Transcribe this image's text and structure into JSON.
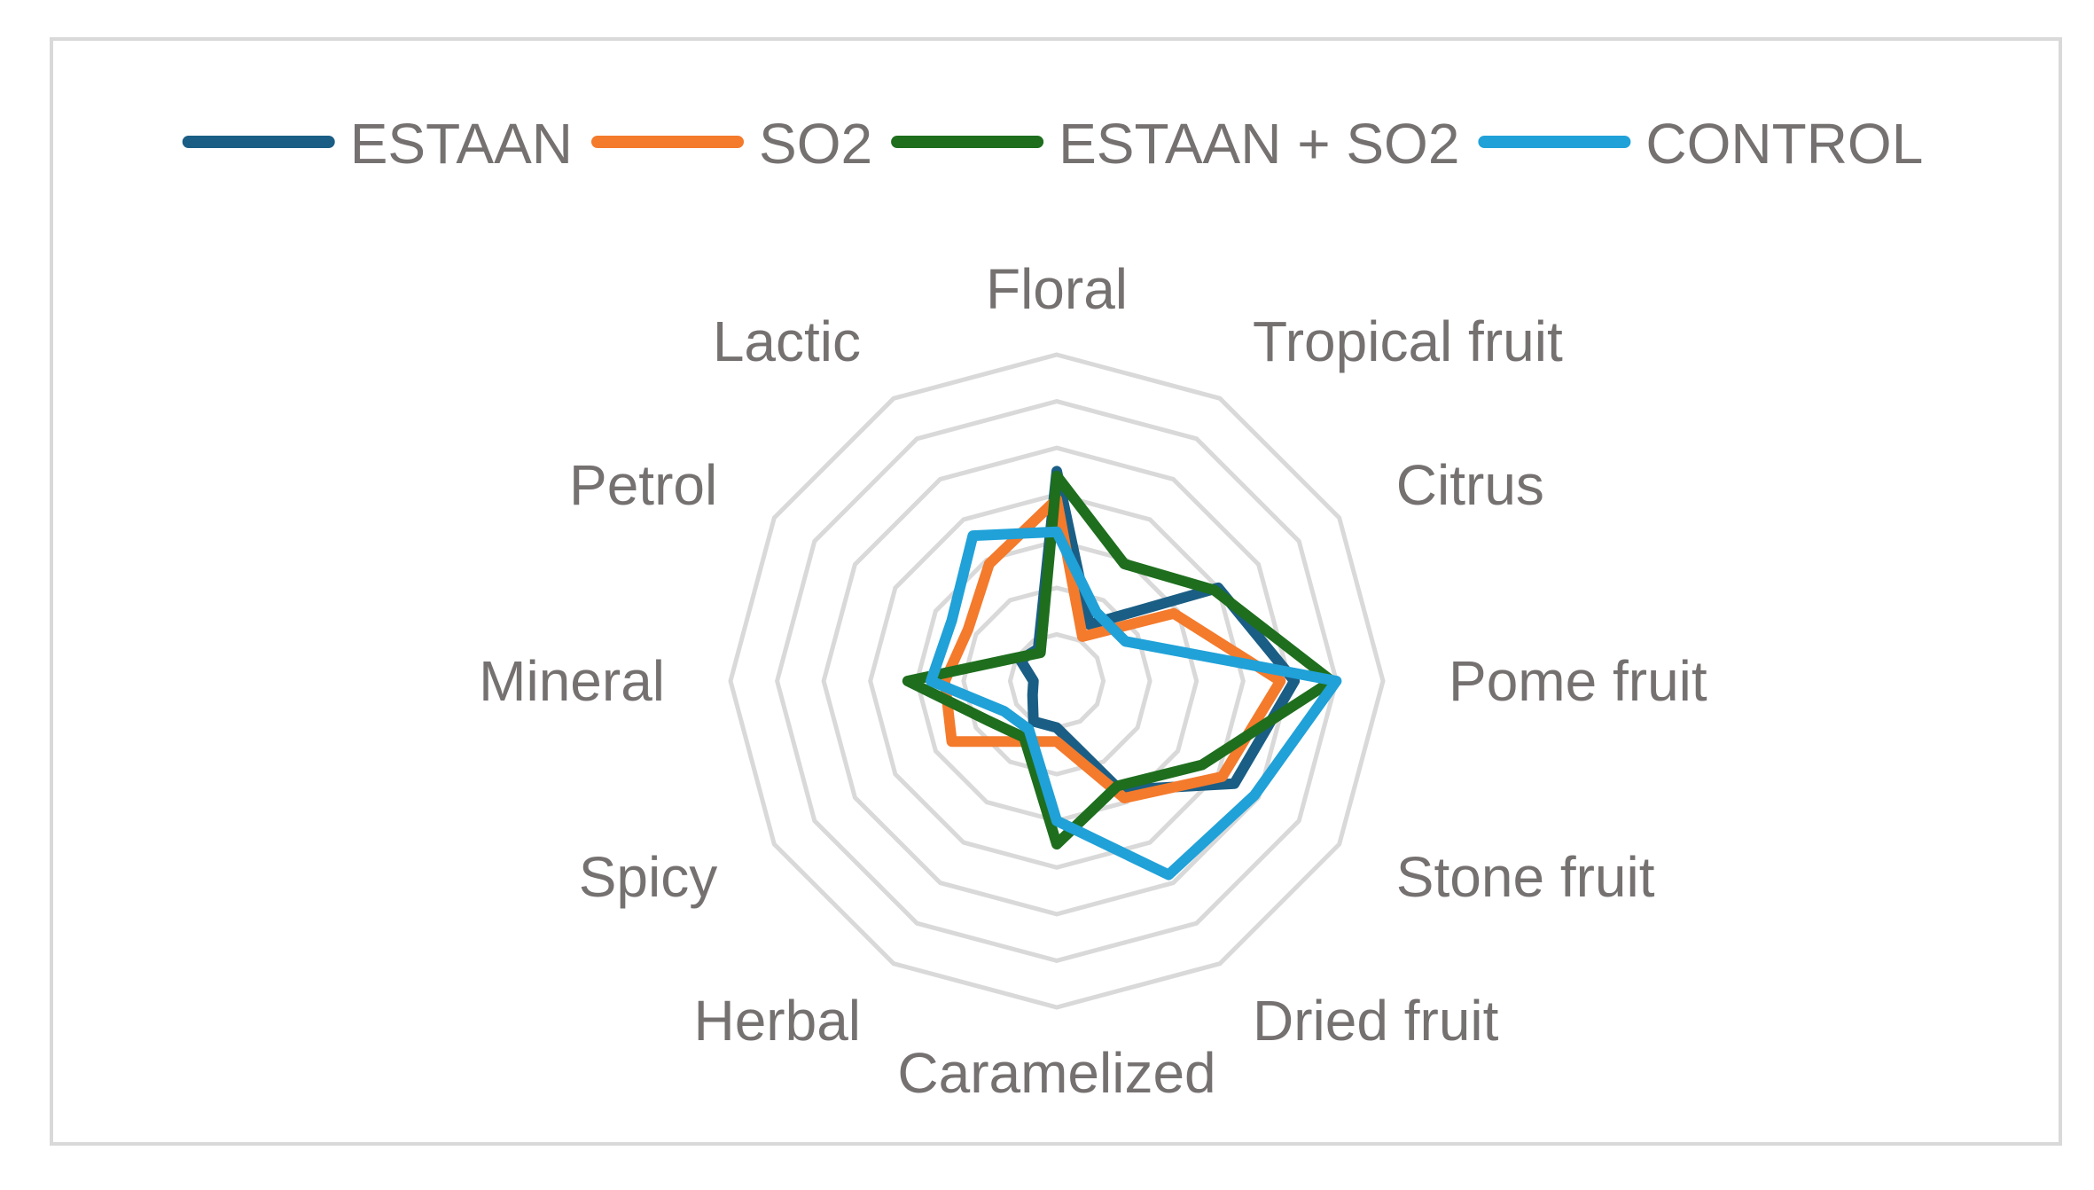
{
  "chart_data": {
    "type": "radar",
    "title": "",
    "categories": [
      "Floral",
      "Tropical fruit",
      "Citrus",
      "Pome fruit",
      "Stone fruit",
      "Dried fruit",
      "Caramelized",
      "Herbal",
      "Spicy",
      "Mineral",
      "Petrol",
      "Lactic"
    ],
    "rmax": 7,
    "rings": 7,
    "grid": true,
    "legend_position": "top",
    "series": [
      {
        "name": "ESTAAN",
        "color": "#1a5e85",
        "values": [
          4.5,
          1.4,
          4.0,
          5.1,
          4.4,
          2.7,
          1.0,
          1.0,
          0.6,
          0.5,
          0.9,
          0.8
        ]
      },
      {
        "name": "SO2",
        "color": "#f47a2c",
        "values": [
          3.9,
          1.1,
          2.9,
          4.8,
          4.1,
          2.9,
          1.3,
          1.5,
          2.6,
          2.4,
          2.2,
          2.9
        ]
      },
      {
        "name": "ESTAAN + SO2",
        "color": "#1e6e1e",
        "values": [
          4.4,
          2.9,
          3.9,
          5.9,
          3.6,
          2.6,
          3.5,
          1.4,
          1.7,
          3.2,
          1.0,
          0.7
        ]
      },
      {
        "name": "CONTROL",
        "color": "#20a1d8",
        "values": [
          3.2,
          1.7,
          1.7,
          6.0,
          4.9,
          4.8,
          3.0,
          1.2,
          1.3,
          2.7,
          2.6,
          3.6
        ]
      }
    ]
  }
}
